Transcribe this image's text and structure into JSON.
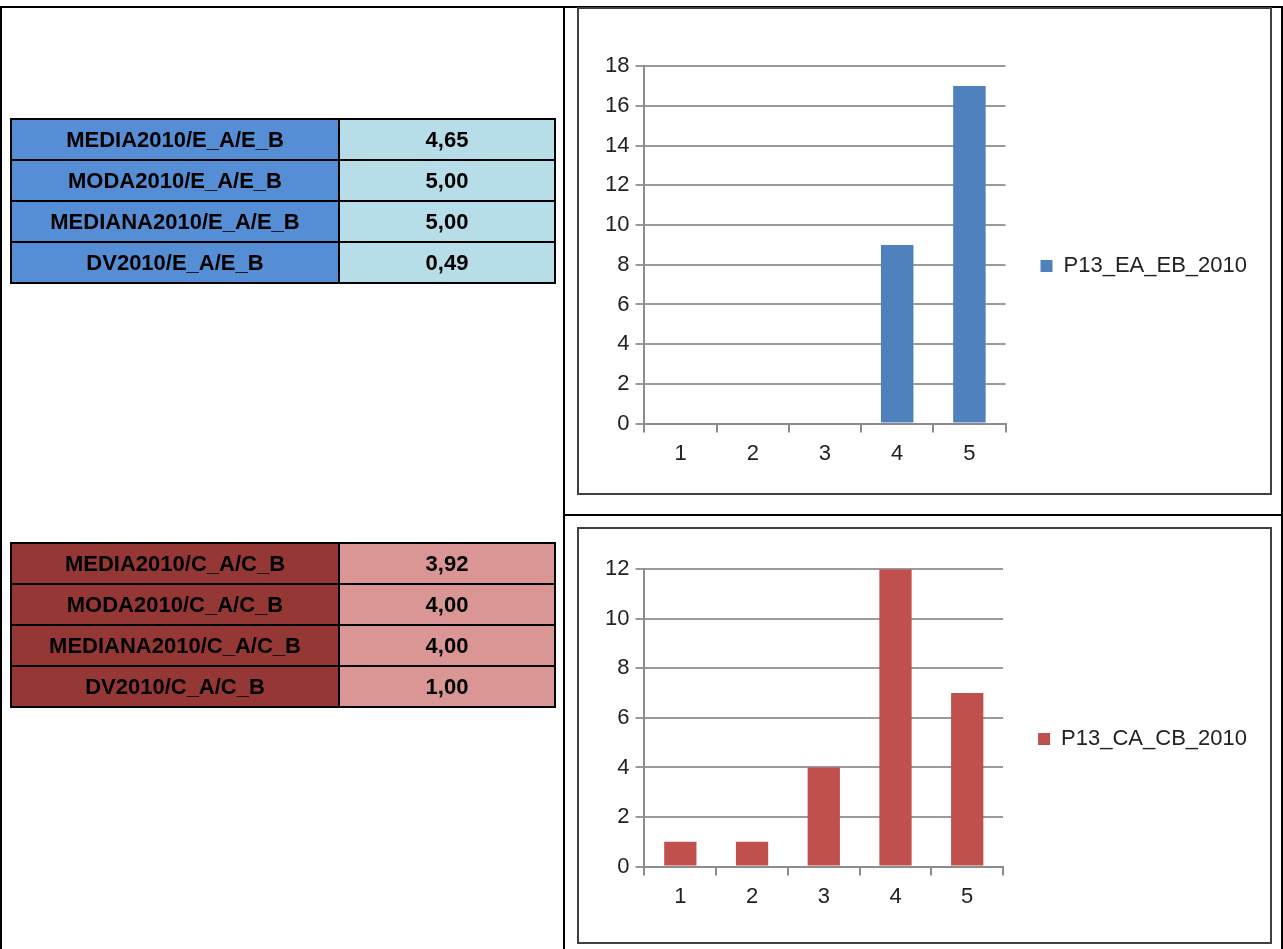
{
  "chart_data": [
    {
      "type": "other",
      "annotations": [
        "MEDIA2010/E_A/E_B",
        "4,65",
        "MODA2010/E_A/E_B",
        "5,00",
        "MEDIANA2010/E_A/E_B",
        "5,00",
        "DV2010/E_A/E_B",
        "0,49"
      ]
    },
    {
      "type": "bar",
      "categories": [
        "1",
        "2",
        "3",
        "4",
        "5"
      ],
      "series": [
        {
          "name": "P13_EA_EB_2010",
          "color": "#4f81bd",
          "values": [
            0,
            0,
            0,
            9,
            17
          ]
        }
      ],
      "ylim": [
        0,
        18
      ],
      "yticks": [
        0,
        2,
        4,
        6,
        8,
        10,
        12,
        14,
        16,
        18
      ],
      "grid": "y",
      "legend": "right"
    },
    {
      "type": "other",
      "annotations": [
        "MEDIA2010/C_A/C_B",
        "3,92",
        "MODA2010/C_A/C_B",
        "4,00",
        "MEDIANA2010/C_A/C_B",
        "4,00",
        "DV2010/C_A/C_B",
        "1,00"
      ]
    },
    {
      "type": "bar",
      "categories": [
        "1",
        "2",
        "3",
        "4",
        "5"
      ],
      "series": [
        {
          "name": "P13_CA_CB_2010",
          "color": "#c0504d",
          "values": [
            1,
            1,
            4,
            12,
            7
          ]
        }
      ],
      "ylim": [
        0,
        12
      ],
      "yticks": [
        0,
        2,
        4,
        6,
        8,
        10,
        12
      ],
      "grid": "y",
      "legend": "right"
    }
  ]
}
